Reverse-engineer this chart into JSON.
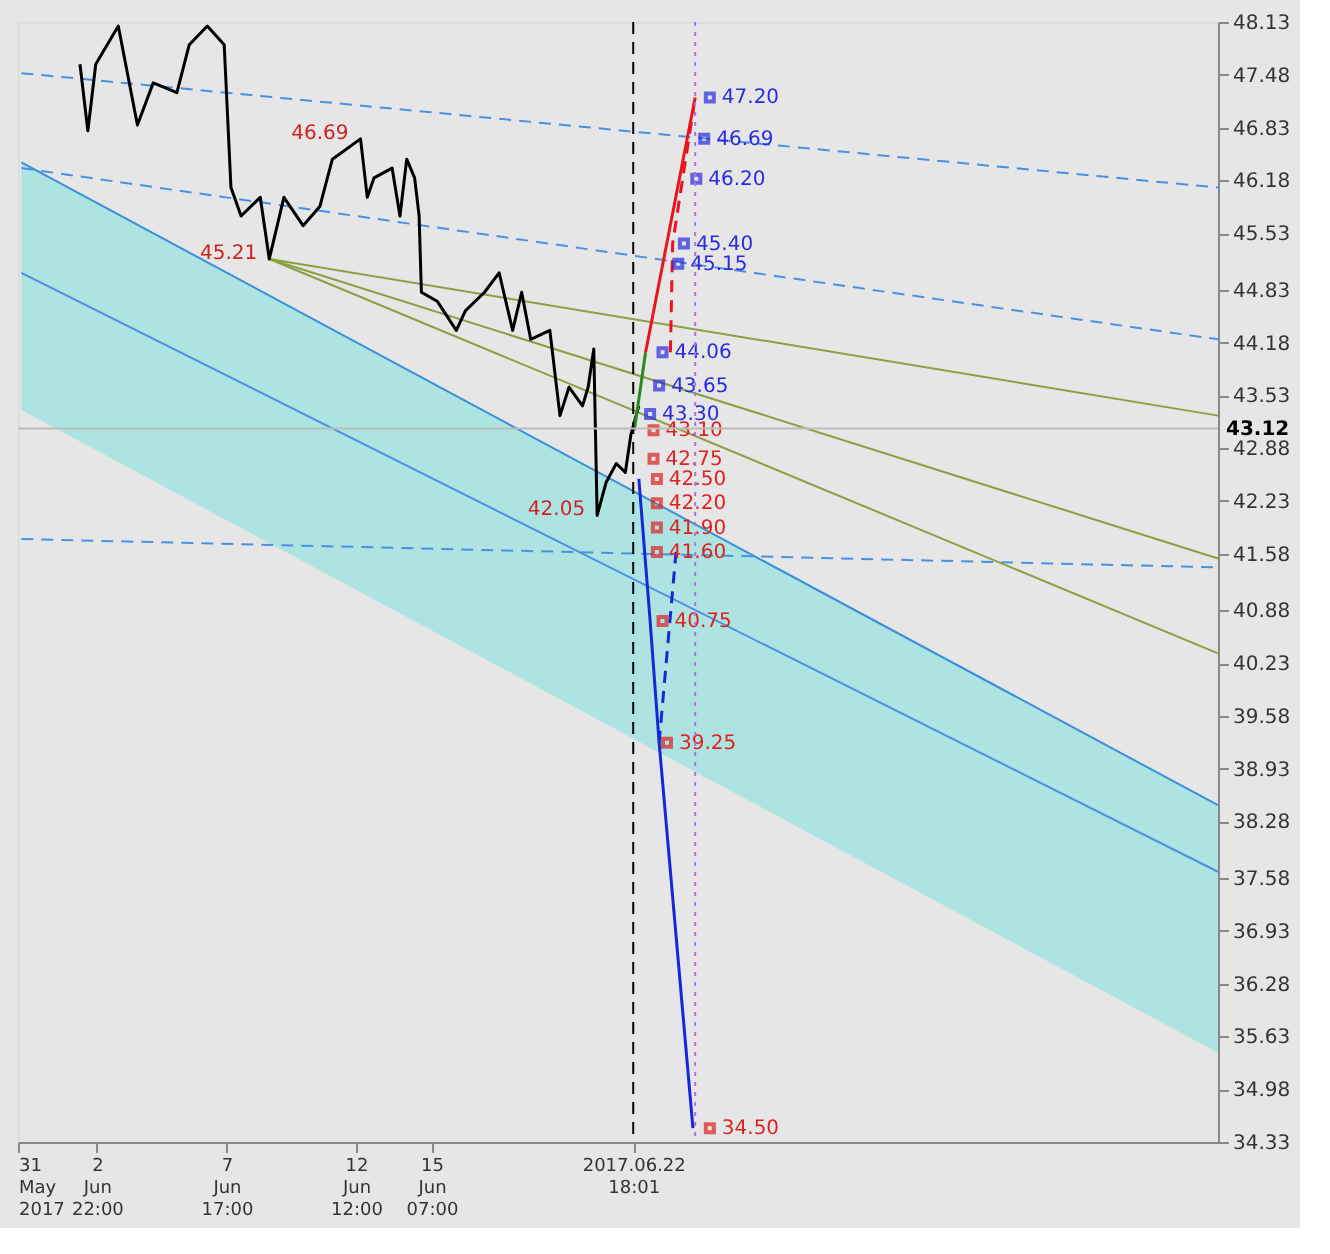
{
  "chart_data": {
    "type": "line",
    "xlim": [
      "2017-05-31T00:00",
      "2017-07-14T09:00"
    ],
    "xticks": [
      {
        "value": "2017-05-31T00:00",
        "label": "31 May 2017"
      },
      {
        "value": "2017-06-02T22:00",
        "label": "2 Jun 22:00"
      },
      {
        "value": "2017-06-07T17:00",
        "label": "7 Jun 17:00"
      },
      {
        "value": "2017-06-12T12:00",
        "label": "12 Jun 12:00"
      },
      {
        "value": "2017-06-15T07:00",
        "label": "15 Jun 07:00"
      },
      {
        "value": "2017-06-22T18:01",
        "label": "2017.06.22 18:01"
      }
    ],
    "ylim": [
      34.33,
      48.13
    ],
    "yticks": [
      48.13,
      47.48,
      46.83,
      46.18,
      45.53,
      44.83,
      44.18,
      43.53,
      42.88,
      42.23,
      41.58,
      40.88,
      40.23,
      39.58,
      38.93,
      38.28,
      37.58,
      36.93,
      36.28,
      35.63,
      34.98,
      34.33
    ],
    "grid": false,
    "series": [
      {
        "color": "#3a8fd8",
        "x": [
          "2017-05-31T03:00",
          "2017-07-14T09:00"
        ],
        "values": [
          46.4,
          38.48
        ],
        "lower": [
          43.35,
          35.43
        ],
        "upper": [
          46.4,
          38.48
        ],
        "line_style": "solid",
        "marker": "none"
      },
      {
        "type": "line",
        "color": "#4a90e2",
        "x": [
          "2017-05-31T03:00",
          "2017-07-14T09:00"
        ],
        "values": [
          45.04,
          37.66
        ],
        "line_style": "solid",
        "marker": "none"
      },
      {
        "type": "line",
        "color": "#4a90e2",
        "x": [
          "2017-05-31T03:00",
          "2017-07-14T09:00"
        ],
        "values": [
          47.5,
          46.09
        ],
        "line_style": "dashed",
        "marker": "none"
      },
      {
        "type": "line",
        "color": "#4a90e2",
        "x": [
          "2017-05-31T03:00",
          "2017-07-14T09:00"
        ],
        "values": [
          46.33,
          44.22
        ],
        "line_style": "dashed",
        "marker": "none"
      },
      {
        "type": "line",
        "color": "#4a90e2",
        "x": [
          "2017-05-31T03:00",
          "2017-07-14T09:00"
        ],
        "values": [
          41.76,
          41.41
        ],
        "line_style": "dashed",
        "marker": "none"
      },
      {
        "type": "line",
        "color": "#8aa040",
        "x": [
          "2017-06-09T07:00",
          "2017-07-14T09:00"
        ],
        "values": [
          45.21,
          43.28
        ],
        "line_style": "solid",
        "marker": "none"
      },
      {
        "type": "line",
        "color": "#8aa040",
        "x": [
          "2017-06-09T07:00",
          "2017-07-14T09:00"
        ],
        "values": [
          45.21,
          41.52
        ],
        "line_style": "solid",
        "marker": "none"
      },
      {
        "type": "line",
        "color": "#8aa040",
        "x": [
          "2017-06-09T07:00",
          "2017-07-14T09:00"
        ],
        "values": [
          45.21,
          40.35
        ],
        "line_style": "solid",
        "marker": "none"
      },
      {
        "type": "line",
        "color": "#000000",
        "x": [
          "2017-06-02T07:00",
          "2017-06-02T14:00",
          "2017-06-02T21:00",
          "2017-06-03T17:00",
          "2017-06-04T10:00",
          "2017-06-05T00:00",
          "2017-06-05T21:00",
          "2017-06-06T08:00",
          "2017-06-07T00:00",
          "2017-06-07T15:00",
          "2017-06-07T21:00",
          "2017-06-08T06:00",
          "2017-06-08T23:00",
          "2017-06-09T07:00",
          "2017-06-09T20:00",
          "2017-06-10T13:00",
          "2017-06-11T04:00",
          "2017-06-11T15:00",
          "2017-06-12T16:00",
          "2017-06-12T22:00",
          "2017-06-13T04:00",
          "2017-06-13T20:00",
          "2017-06-14T03:00",
          "2017-06-14T09:00",
          "2017-06-14T16:00",
          "2017-06-14T20:00",
          "2017-06-14T22:00",
          "2017-06-15T12:00",
          "2017-06-16T05:00",
          "2017-06-16T13:00",
          "2017-06-17T06:00",
          "2017-06-17T19:00",
          "2017-06-18T07:00",
          "2017-06-18T15:00",
          "2017-06-18T23:00",
          "2017-06-19T16:00",
          "2017-06-20T01:00",
          "2017-06-20T09:00",
          "2017-06-20T21:00",
          "2017-06-21T02:00",
          "2017-06-21T07:00",
          "2017-06-21T10:00",
          "2017-06-21T18:00",
          "2017-06-22T03:00",
          "2017-06-22T11:00",
          "2017-06-22T16:00",
          "2017-06-22T23:00"
        ],
        "values": [
          47.61,
          46.79,
          47.61,
          48.08,
          46.86,
          47.38,
          47.26,
          47.85,
          48.08,
          47.85,
          46.09,
          45.74,
          45.97,
          45.21,
          45.97,
          45.62,
          45.86,
          46.44,
          46.69,
          45.97,
          46.21,
          46.33,
          45.74,
          46.44,
          46.21,
          45.74,
          44.8,
          44.69,
          44.33,
          44.57,
          44.8,
          45.04,
          44.33,
          44.8,
          44.22,
          44.33,
          43.28,
          43.63,
          43.4,
          43.63,
          44.1,
          42.05,
          42.46,
          42.69,
          42.58,
          43.05,
          43.4
        ],
        "line_style": "solid",
        "marker": "none"
      },
      {
        "type": "line",
        "color": "#2a8a1e",
        "x": [
          "2017-06-22T19:00",
          "2017-06-23T05:00"
        ],
        "values": [
          43.1,
          44.06
        ],
        "line_style": "solid",
        "marker": "none"
      },
      {
        "type": "line",
        "color": "#e8141e",
        "x": [
          "2017-06-23T05:00",
          "2017-06-25T01:00"
        ],
        "values": [
          44.06,
          47.2
        ],
        "line_style": "solid",
        "marker": "none"
      },
      {
        "type": "line",
        "color": "#e8141e",
        "x": [
          "2017-06-25T01:00",
          "2017-06-24T05:00",
          "2017-06-24T03:00"
        ],
        "values": [
          47.2,
          45.4,
          44.06
        ],
        "line_style": "dashed",
        "marker": "none"
      },
      {
        "type": "line",
        "color": "#1428d8",
        "x": [
          "2017-06-22T23:00",
          "2017-06-23T09:00",
          "2017-06-23T17:00",
          "2017-06-24T23:00"
        ],
        "values": [
          42.5,
          40.75,
          39.25,
          34.5
        ],
        "line_style": "solid",
        "marker": "none"
      },
      {
        "type": "line",
        "color": "#1428d8",
        "x": [
          "2017-06-23T17:00",
          "2017-06-24T08:00"
        ],
        "values": [
          39.25,
          41.6
        ],
        "line_style": "dashed",
        "marker": "none"
      },
      {
        "type": "scatter",
        "color": "#2a2ae0",
        "marker": "square",
        "x": [
          "2017-06-25T14:00",
          "2017-06-25T09:00",
          "2017-06-25T02:00",
          "2017-06-24T15:00",
          "2017-06-24T10:00",
          "2017-06-23T20:00",
          "2017-06-23T17:00",
          "2017-06-23T09:00"
        ],
        "values": [
          47.2,
          46.69,
          46.2,
          45.4,
          45.15,
          44.06,
          43.65,
          43.3
        ],
        "value_labels": [
          "47.20",
          "46.69",
          "46.20",
          "45.40",
          "45.15",
          "44.06",
          "43.65",
          "43.30"
        ]
      },
      {
        "type": "scatter",
        "color": "#e02020",
        "marker": "square",
        "x": [
          "2017-06-23T12:00",
          "2017-06-23T12:00",
          "2017-06-23T15:00",
          "2017-06-23T15:00",
          "2017-06-23T15:00",
          "2017-06-23T15:00",
          "2017-06-23T20:00",
          "2017-06-24T00:00",
          "2017-06-25T14:00"
        ],
        "values": [
          43.1,
          42.75,
          42.5,
          42.2,
          41.9,
          41.6,
          40.75,
          39.25,
          34.5
        ],
        "value_labels": [
          "43.10",
          "42.75",
          "42.50",
          "42.20",
          "41.90",
          "41.60",
          "40.75",
          "39.25",
          "34.50"
        ]
      }
    ],
    "ref_lines": [
      {
        "axis": "x",
        "value": "2017-06-22T18:01",
        "color": "#000000",
        "line_style": "dashed"
      },
      {
        "axis": "x",
        "value": "2017-06-25T01:00",
        "color": "#b070e0",
        "line_style": "dotted"
      },
      {
        "axis": "y",
        "value": 43.12,
        "label": "43.12",
        "color": "#bbbbbb",
        "line_style": "solid"
      }
    ],
    "annotations": [
      {
        "text": "46.69",
        "x": "2017-06-12T16:00",
        "y": 46.69
      },
      {
        "text": "45.21",
        "x": "2017-06-09T07:00",
        "y": 45.21
      },
      {
        "text": "42.05",
        "x": "2017-06-21T10:00",
        "y": 42.05
      }
    ]
  }
}
